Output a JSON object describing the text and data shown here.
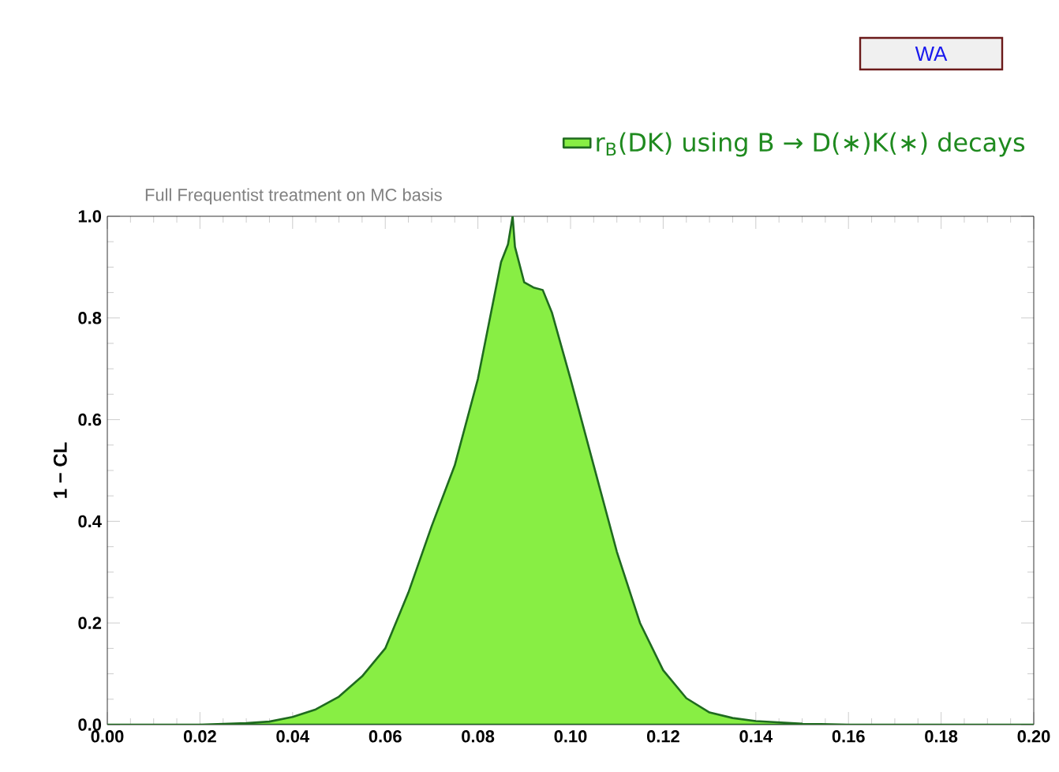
{
  "chart_data": {
    "type": "area",
    "subtitle": "Full Frequentist treatment on MC basis",
    "ylabel": "1 − CL",
    "annotations": [
      "WA"
    ],
    "legend": "top right",
    "xlim": [
      0,
      0.2
    ],
    "ylim": [
      0,
      1
    ],
    "xticks": [
      {
        "value": 0,
        "label": "0.00"
      },
      {
        "value": 0.02,
        "label": "0.02"
      },
      {
        "value": 0.04,
        "label": "0.04"
      },
      {
        "value": 0.06,
        "label": "0.06"
      },
      {
        "value": 0.08,
        "label": "0.08"
      },
      {
        "value": 0.1,
        "label": "0.10"
      },
      {
        "value": 0.12,
        "label": "0.12"
      },
      {
        "value": 0.14,
        "label": "0.14"
      },
      {
        "value": 0.16,
        "label": "0.16"
      },
      {
        "value": 0.18,
        "label": "0.18"
      },
      {
        "value": 0.2,
        "label": "0.20"
      }
    ],
    "yticks": [
      {
        "value": 0,
        "label": "0.0"
      },
      {
        "value": 0.2,
        "label": "0.2"
      },
      {
        "value": 0.4,
        "label": "0.4"
      },
      {
        "value": 0.6,
        "label": "0.6"
      },
      {
        "value": 0.8,
        "label": "0.8"
      },
      {
        "value": 1,
        "label": "1.0"
      }
    ],
    "series": [
      {
        "name": "r$_{B}$(DK) using B → D(∗)K(∗) decays",
        "color": "#88ee44",
        "x": [
          0,
          0.02,
          0.03,
          0.035,
          0.04,
          0.045,
          0.05,
          0.055,
          0.06,
          0.065,
          0.07,
          0.075,
          0.08,
          0.085,
          0.0865,
          0.0875,
          0.088,
          0.09,
          0.092,
          0.094,
          0.096,
          0.1,
          0.105,
          0.11,
          0.115,
          0.12,
          0.125,
          0.13,
          0.135,
          0.14,
          0.15,
          0.16,
          0.2
        ],
        "values": [
          0,
          0,
          0.003,
          0.006,
          0.015,
          0.03,
          0.055,
          0.095,
          0.15,
          0.26,
          0.39,
          0.51,
          0.68,
          0.91,
          0.945,
          1.0,
          0.94,
          0.87,
          0.86,
          0.855,
          0.81,
          0.68,
          0.51,
          0.34,
          0.2,
          0.107,
          0.052,
          0.024,
          0.013,
          0.007,
          0.002,
          0,
          0
        ]
      }
    ]
  }
}
